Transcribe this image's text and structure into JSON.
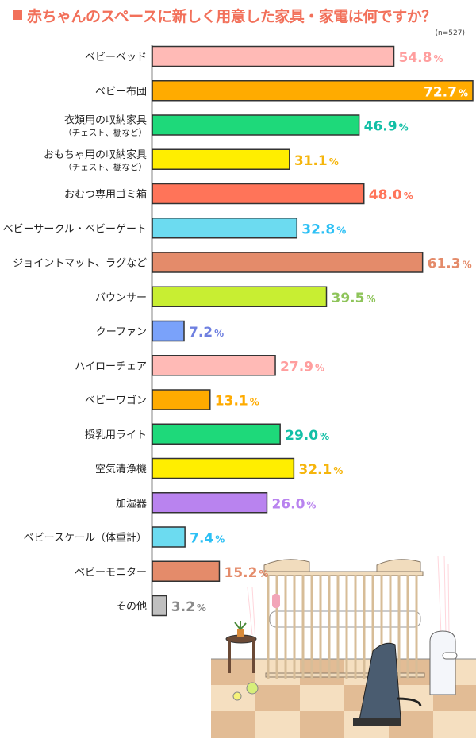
{
  "chart_data": {
    "type": "bar",
    "orientation": "horizontal",
    "title": "赤ちゃんのスペースに新しく用意した家具・家電は何ですか？",
    "sample_note": "(n=527)",
    "unit": "%",
    "xlim": [
      0,
      72.7
    ],
    "grid": false,
    "categories": [
      {
        "label": "ベビーベッド",
        "sub": ""
      },
      {
        "label": "ベビー布団",
        "sub": ""
      },
      {
        "label": "衣類用の収納家具",
        "sub": "（チェスト、棚など）"
      },
      {
        "label": "おもちゃ用の収納家具",
        "sub": "（チェスト、棚など）"
      },
      {
        "label": "おむつ専用ゴミ箱",
        "sub": ""
      },
      {
        "label": "ベビーサークル・ベビーゲート",
        "sub": ""
      },
      {
        "label": "ジョイントマット、ラグなど",
        "sub": ""
      },
      {
        "label": "バウンサー",
        "sub": ""
      },
      {
        "label": "クーファン",
        "sub": ""
      },
      {
        "label": "ハイローチェア",
        "sub": ""
      },
      {
        "label": "ベビーワゴン",
        "sub": ""
      },
      {
        "label": "授乳用ライト",
        "sub": ""
      },
      {
        "label": "空気清浄機",
        "sub": ""
      },
      {
        "label": "加湿器",
        "sub": ""
      },
      {
        "label": "ベビースケール（体重計）",
        "sub": ""
      },
      {
        "label": "ベビーモニター",
        "sub": ""
      },
      {
        "label": "その他",
        "sub": ""
      }
    ],
    "values": [
      54.8,
      72.7,
      46.9,
      31.1,
      48.0,
      32.8,
      61.3,
      39.5,
      7.2,
      27.9,
      13.1,
      29.0,
      32.1,
      26.0,
      7.4,
      15.2,
      3.2
    ],
    "value_labels": [
      "54.8",
      "72.7",
      "46.9",
      "31.1",
      "48.0",
      "32.8",
      "61.3",
      "39.5",
      "7.2",
      "27.9",
      "13.1",
      "29.0",
      "32.1",
      "26.0",
      "7.4",
      "15.2",
      "3.2"
    ],
    "bar_colors": [
      "#ffbab6",
      "#ffab00",
      "#1ed97a",
      "#ffee00",
      "#ff7459",
      "#6cdbf0",
      "#e48b6a",
      "#c8ee32",
      "#7aa2fa",
      "#ffbab6",
      "#ffab00",
      "#1ed97a",
      "#ffee00",
      "#b983ef",
      "#6cdbf0",
      "#e48b6a",
      "#c0c0c0"
    ],
    "label_colors": [
      "#ff9e9e",
      "#ffffff",
      "#12bfa6",
      "#f5b50c",
      "#ff7459",
      "#2cc0f5",
      "#e48b6a",
      "#8ec45a",
      "#6f80e0",
      "#ff9e9e",
      "#ffab00",
      "#12bfa6",
      "#f5b50c",
      "#b983ef",
      "#2cc0f5",
      "#e48b6a",
      "#8a8a8a"
    ]
  }
}
